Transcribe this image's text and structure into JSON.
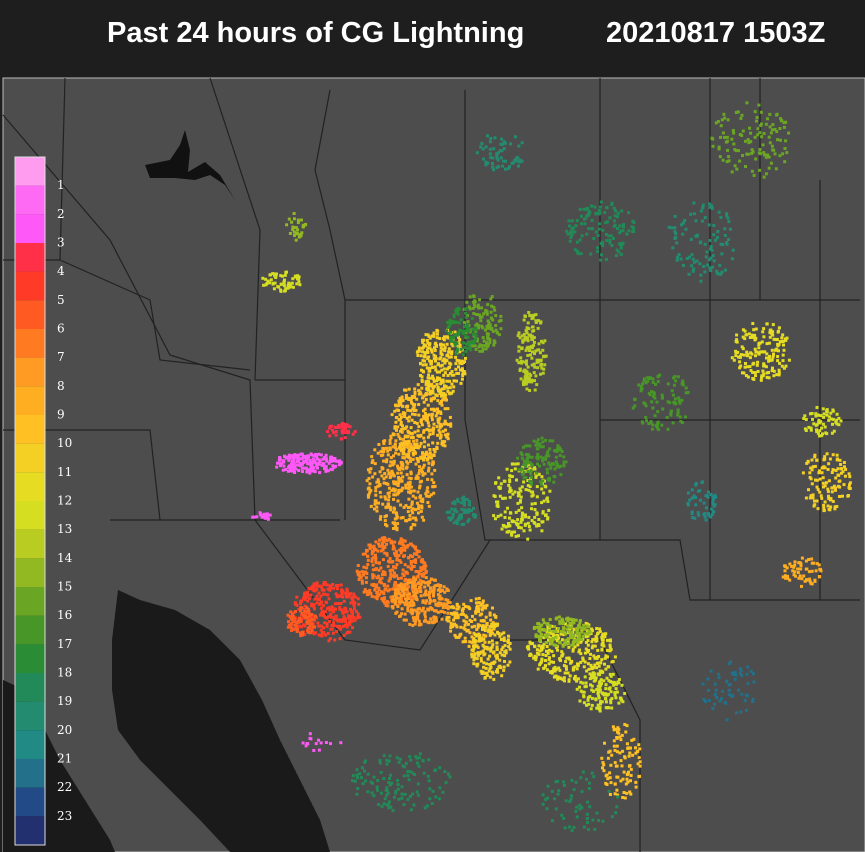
{
  "header": {
    "title": "Past 24 hours of CG Lightning",
    "timestamp": "20210817 1503Z"
  },
  "legend": {
    "labels": [
      "1",
      "2",
      "3",
      "4",
      "5",
      "6",
      "7",
      "8",
      "9",
      "10",
      "11",
      "12",
      "13",
      "14",
      "15",
      "16",
      "17",
      "18",
      "19",
      "20",
      "21",
      "22",
      "23"
    ],
    "colors": [
      "#ff9cf0",
      "#ff6af4",
      "#ff58f8",
      "#ff3048",
      "#ff3a26",
      "#ff5a22",
      "#ff7a20",
      "#ff9a22",
      "#ffae22",
      "#ffc024",
      "#f4cf24",
      "#e6dc22",
      "#d6de22",
      "#b8cc22",
      "#92b822",
      "#6aa624",
      "#489628",
      "#2a8c34",
      "#228a58",
      "#238c70",
      "#228a84",
      "#22708a",
      "#224a86",
      "#223070"
    ]
  }
}
